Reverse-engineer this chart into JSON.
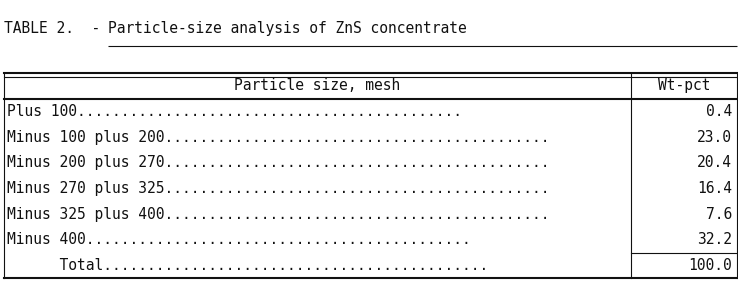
{
  "title_prefix": "TABLE 2.  - ",
  "title_underlined": "Particle-size analysis of ZnS concentrate",
  "col_header_left": "Particle size, mesh",
  "col_header_right": "Wt-pct",
  "rows": [
    {
      "label": "Plus 100",
      "value": "0.4",
      "total": false,
      "indent": false
    },
    {
      "label": "Minus 100 plus 200",
      "value": "23.0",
      "total": false,
      "indent": false
    },
    {
      "label": "Minus 200 plus 270",
      "value": "20.4",
      "total": false,
      "indent": false
    },
    {
      "label": "Minus 270 plus 325",
      "value": "16.4",
      "total": false,
      "indent": false
    },
    {
      "label": "Minus 325 plus 400",
      "value": "7.6",
      "total": false,
      "indent": false
    },
    {
      "label": "Minus 400",
      "value": "32.2",
      "total": false,
      "indent": false
    },
    {
      "label": "      Total",
      "value": "100.0",
      "total": true,
      "indent": true
    }
  ],
  "bg_color": "#ffffff",
  "text_color": "#111111",
  "font_family": "monospace",
  "title_fontsize": 10.5,
  "header_fontsize": 10.5,
  "row_fontsize": 10.5,
  "fig_width": 7.38,
  "fig_height": 2.81,
  "col_split": 0.855,
  "dots_total": 44
}
